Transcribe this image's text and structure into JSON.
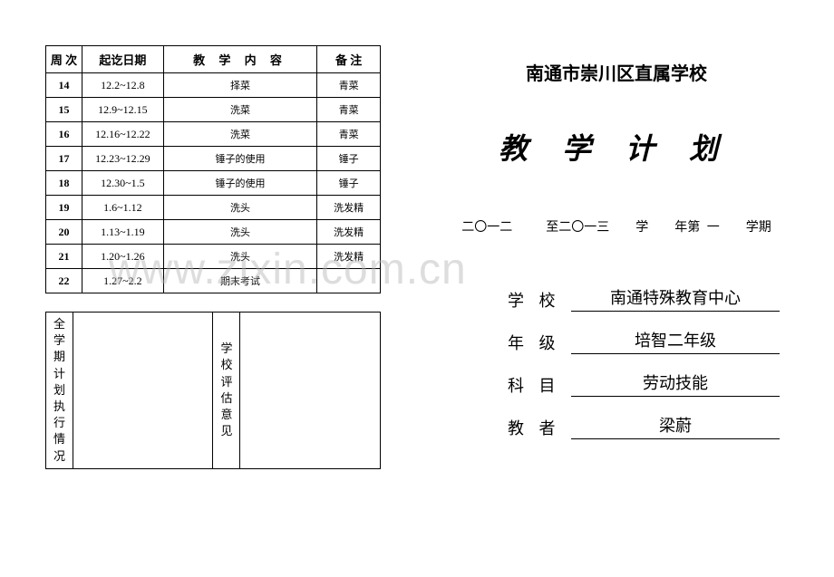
{
  "table": {
    "headers": {
      "week": "周 次",
      "date": "起讫日期",
      "content": "教 学 内 容",
      "note": "备 注"
    },
    "rows": [
      {
        "week": "14",
        "date": "12.2~12.8",
        "content": "择菜",
        "note": "青菜"
      },
      {
        "week": "15",
        "date": "12.9~12.15",
        "content": "洗菜",
        "note": "青菜"
      },
      {
        "week": "16",
        "date": "12.16~12.22",
        "content": "洗菜",
        "note": "青菜"
      },
      {
        "week": "17",
        "date": "12.23~12.29",
        "content": "锤子的使用",
        "note": "锤子"
      },
      {
        "week": "18",
        "date": "12.30~1.5",
        "content": "锤子的使用",
        "note": "锤子"
      },
      {
        "week": "19",
        "date": "1.6~1.12",
        "content": "洗头",
        "note": "洗发精"
      },
      {
        "week": "20",
        "date": "1.13~1.19",
        "content": "洗头",
        "note": "洗发精"
      },
      {
        "week": "21",
        "date": "1.20~1.26",
        "content": "洗头",
        "note": "洗发精"
      },
      {
        "week": "22",
        "date": "1.27~2.2",
        "content": "期末考试",
        "note": ""
      }
    ]
  },
  "eval": {
    "left_label": "全学期计划执行情况",
    "right_label": "学校评估意见"
  },
  "cover": {
    "district": "南通市崇川区直属学校",
    "title": "教学计划",
    "term_prefix": "二〇一二",
    "term_mid": "至二〇一三",
    "term_label1": "学",
    "term_label2": "年第",
    "term_num": "一",
    "term_label3": "学期",
    "school_label": "学 校",
    "school_value": "南通特殊教育中心",
    "grade_label": "年 级",
    "grade_value": "培智二年级",
    "subject_label": "科 目",
    "subject_value": "劳动技能",
    "teacher_label": "教 者",
    "teacher_value": "梁蔚"
  },
  "watermark": "www.zixin.com.cn",
  "colors": {
    "text": "#000000",
    "background": "#ffffff",
    "border": "#000000",
    "watermark": "rgba(180,180,180,0.45)"
  }
}
